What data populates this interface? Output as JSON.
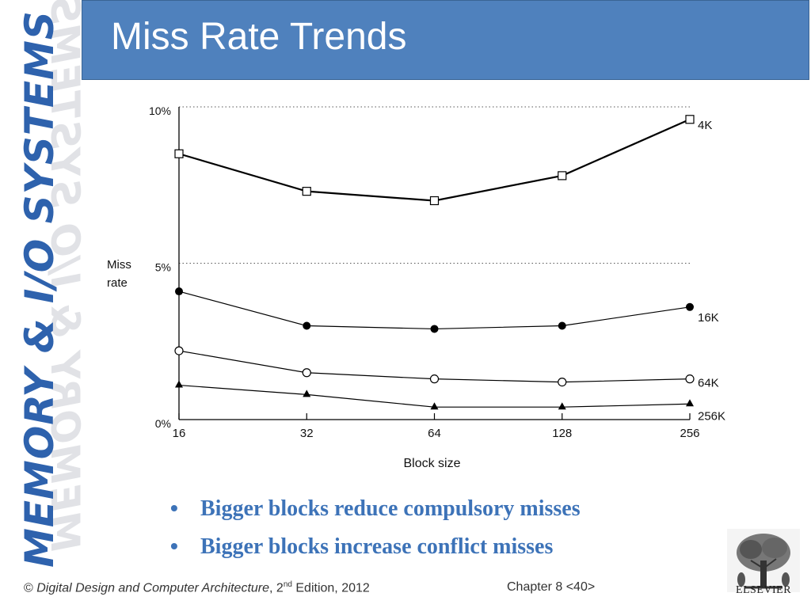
{
  "sidebar": {
    "label": "MEMORY & I/O SYSTEMS"
  },
  "header": {
    "title": "Miss Rate Trends"
  },
  "bullets": [
    "Bigger blocks reduce compulsory misses",
    "Bigger blocks increase conflict misses"
  ],
  "footer": {
    "copyright_symbol": "©",
    "book_title": "Digital Design and Computer Architecture",
    "edition_pre": ", 2",
    "edition_sup": "nd",
    "edition_post": " Edition, 2012",
    "chapter": "Chapter 8 <40>"
  },
  "logo": {
    "label": "ELSEVIER"
  },
  "colors": {
    "header": "#4f81bd",
    "bullet_text": "#3d73b8",
    "sidebar_text": "#2e62ad"
  },
  "chart_data": {
    "type": "line",
    "xlabel": "Block size",
    "ylabel": [
      "Miss",
      "rate"
    ],
    "categories": [
      "16",
      "32",
      "64",
      "128",
      "256"
    ],
    "y_ticks": [
      {
        "value": 0,
        "label": "0%"
      },
      {
        "value": 5,
        "label": "5%"
      },
      {
        "value": 10,
        "label": "10%"
      }
    ],
    "ylim": [
      0,
      10
    ],
    "gridlines": [
      5,
      10
    ],
    "series": [
      {
        "name": "4K",
        "marker": "open-square",
        "line_width": 2.2,
        "values": [
          8.5,
          7.3,
          7.0,
          7.8,
          9.6
        ]
      },
      {
        "name": "16K",
        "marker": "filled-circle",
        "line_width": 1.2,
        "values": [
          4.1,
          3.0,
          2.9,
          3.0,
          3.6
        ]
      },
      {
        "name": "64K",
        "marker": "open-circle",
        "line_width": 1.2,
        "values": [
          2.2,
          1.5,
          1.3,
          1.2,
          1.3
        ]
      },
      {
        "name": "256K",
        "marker": "filled-triangle",
        "line_width": 1.2,
        "values": [
          1.1,
          0.8,
          0.4,
          0.4,
          0.5
        ]
      }
    ]
  }
}
